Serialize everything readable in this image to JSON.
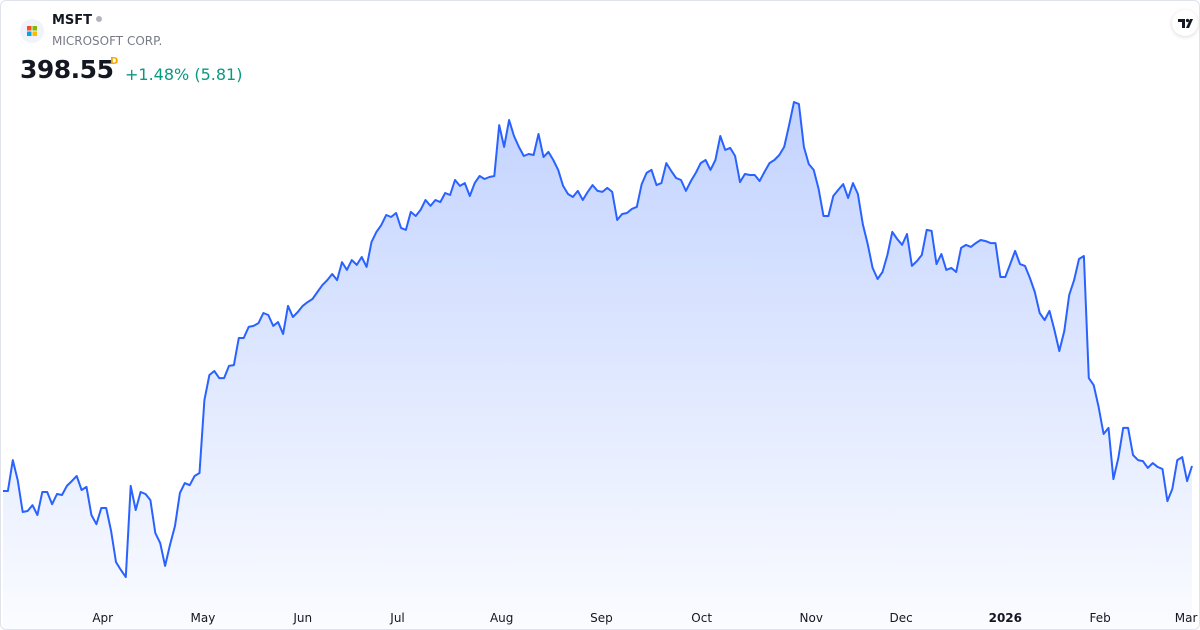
{
  "header": {
    "symbol": "MSFT",
    "name": "MICROSOFT CORP.",
    "price": "398.55",
    "badge": "D",
    "change": "+1.48% (5.81)"
  },
  "chart_data": {
    "type": "area",
    "color": "#2962ff",
    "values": [
      388.7,
      388.7,
      400.9,
      393.0,
      380.4,
      380.8,
      383.1,
      379.2,
      388.3,
      388.3,
      383.5,
      387.5,
      387.1,
      390.7,
      392.6,
      394.6,
      389.1,
      390.3,
      379.2,
      375.6,
      382.0,
      382.0,
      372.9,
      360.6,
      357.5,
      354.7,
      390.7,
      381.2,
      388.3,
      387.5,
      385.1,
      372.1,
      368.1,
      359.1,
      367.4,
      374.9,
      387.9,
      391.8,
      391.0,
      394.6,
      395.8,
      424.6,
      434.5,
      436.1,
      433.3,
      433.3,
      438.1,
      438.4,
      449.1,
      449.1,
      453.5,
      453.9,
      455.0,
      459.0,
      458.2,
      453.9,
      455.4,
      450.7,
      461.8,
      457.4,
      459.4,
      461.8,
      463.3,
      464.5,
      467.3,
      470.0,
      472.0,
      474.4,
      472.0,
      479.1,
      476.0,
      479.9,
      478.0,
      481.1,
      477.2,
      487.0,
      491.0,
      493.7,
      497.7,
      496.9,
      498.5,
      492.6,
      491.8,
      498.9,
      497.3,
      499.7,
      503.6,
      501.3,
      503.6,
      502.8,
      506.4,
      505.6,
      511.5,
      509.2,
      510.3,
      505.2,
      510.3,
      513.1,
      511.9,
      512.7,
      513.1,
      533.2,
      524.6,
      535.2,
      528.9,
      524.6,
      521.0,
      521.8,
      521.4,
      529.7,
      520.6,
      522.6,
      519.4,
      515.5,
      509.2,
      506.0,
      504.8,
      507.2,
      503.6,
      506.8,
      509.5,
      507.2,
      506.8,
      508.4,
      506.8,
      495.7,
      498.1,
      498.5,
      500.1,
      500.9,
      509.9,
      514.3,
      515.5,
      509.5,
      510.3,
      518.2,
      515.1,
      512.3,
      511.5,
      507.2,
      511.1,
      514.3,
      518.2,
      519.4,
      515.5,
      519.4,
      528.9,
      523.4,
      524.2,
      521.0,
      510.7,
      513.9,
      513.5,
      513.5,
      511.1,
      514.7,
      518.2,
      519.4,
      521.4,
      524.6,
      533.2,
      542.3,
      541.5,
      524.6,
      517.8,
      515.5,
      508.0,
      497.3,
      497.3,
      505.2,
      507.6,
      509.9,
      504.4,
      510.3,
      506.0,
      494.1,
      486.2,
      476.8,
      472.4,
      475.2,
      481.9,
      491.0,
      488.2,
      485.9,
      490.2,
      477.6,
      479.5,
      481.9,
      491.8,
      491.4,
      478.3,
      482.3,
      476.0,
      476.8,
      475.2,
      484.7,
      485.9,
      485.1,
      486.6,
      487.8,
      487.4,
      486.6,
      486.6,
      473.2,
      473.2,
      478.3,
      483.5,
      478.3,
      477.6,
      472.8,
      467.3,
      459.0,
      456.2,
      459.8,
      452.3,
      444.0,
      451.9,
      466.1,
      472.0,
      480.3,
      481.5,
      433.3,
      430.5,
      421.9,
      411.2,
      413.6,
      393.4,
      401.7,
      413.6,
      413.6,
      402.9,
      400.9,
      400.5,
      397.8,
      399.7,
      398.2,
      397.4,
      384.7,
      389.5,
      400.9,
      402.1,
      392.6,
      398.55
    ],
    "ylim": [
      333.8,
      582.6
    ],
    "xticks": [
      {
        "value": 20.3,
        "label": "Apr"
      },
      {
        "value": 40.7,
        "label": "May"
      },
      {
        "value": 61.0,
        "label": "Jun"
      },
      {
        "value": 80.3,
        "label": "Jul"
      },
      {
        "value": 101.5,
        "label": "Aug"
      },
      {
        "value": 121.8,
        "label": "Sep"
      },
      {
        "value": 142.2,
        "label": "Oct"
      },
      {
        "value": 164.5,
        "label": "Nov"
      },
      {
        "value": 182.8,
        "label": "Dec"
      },
      {
        "value": 204.0,
        "label": "2026"
      },
      {
        "value": 223.3,
        "label": "Feb"
      },
      {
        "value": 240.8,
        "label": "Mar"
      }
    ]
  }
}
